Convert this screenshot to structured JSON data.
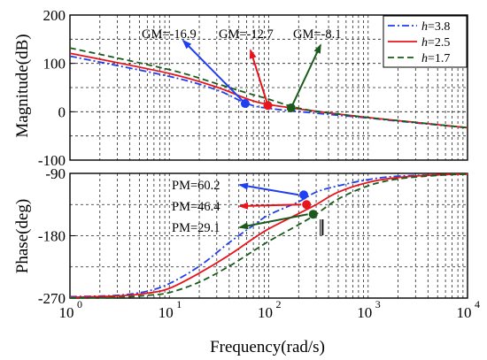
{
  "chart_data": [
    {
      "type": "line",
      "panel": "magnitude",
      "ylabel": "Magnitude(dB)",
      "xlabel": "",
      "xscale": "log",
      "xlim": [
        1,
        10000
      ],
      "ylim": [
        -100,
        200
      ],
      "yticks": [
        -100,
        0,
        100,
        200
      ],
      "grid": "dashed",
      "legend": {
        "placement": "top-right",
        "entries": [
          {
            "var": "h",
            "value": "=3.8"
          },
          {
            "var": "h",
            "value": "=2.5"
          },
          {
            "var": "h",
            "value": "=1.7"
          }
        ]
      },
      "series": [
        {
          "name": "h=3.8",
          "color": "#1f3ff0",
          "dash": "dashdot",
          "x": [
            1,
            10,
            30,
            60,
            100,
            300,
            1000,
            3000,
            10000
          ],
          "y": [
            115,
            73,
            45,
            17,
            7,
            -3,
            -13,
            -23,
            -33
          ]
        },
        {
          "name": "h=2.5",
          "color": "#e8141c",
          "dash": "solid",
          "x": [
            1,
            10,
            30,
            60,
            100,
            300,
            1000,
            3000,
            10000
          ],
          "y": [
            121,
            79,
            51,
            27,
            15,
            1,
            -12,
            -22,
            -33
          ]
        },
        {
          "name": "h=1.7",
          "color": "#1a5a1a",
          "dash": "dashed",
          "x": [
            1,
            10,
            30,
            60,
            100,
            170,
            300,
            1000,
            3000,
            10000
          ],
          "y": [
            132,
            87,
            58,
            39,
            26,
            11,
            1,
            -12,
            -22,
            -33
          ]
        }
      ],
      "markers": [
        {
          "x": 58,
          "y": 17,
          "color": "#1f3ff0"
        },
        {
          "x": 98,
          "y": 13,
          "color": "#e8141c"
        },
        {
          "x": 168,
          "y": 8,
          "color": "#1a5a1a"
        }
      ],
      "annotations": [
        {
          "text": "GM=-16.9",
          "color": "#1f3ff0"
        },
        {
          "text": "GM=-12.7",
          "color": "#e8141c"
        },
        {
          "text": "GM=-8.1",
          "color": "#1a5a1a"
        }
      ]
    },
    {
      "type": "line",
      "panel": "phase",
      "ylabel": "Phase(deg)",
      "xlabel": "Frequency(rad/s)",
      "xscale": "log",
      "xlim": [
        1,
        10000
      ],
      "xticks": [
        1,
        10,
        100,
        1000,
        10000
      ],
      "xtick_labels": [
        {
          "base": "10",
          "exp": "0"
        },
        {
          "base": "10",
          "exp": "1"
        },
        {
          "base": "10",
          "exp": "2"
        },
        {
          "base": "10",
          "exp": "3"
        },
        {
          "base": "10",
          "exp": "4"
        }
      ],
      "ylim": [
        -270,
        -90
      ],
      "yticks": [
        -270,
        -180,
        -90
      ],
      "grid": "dashed",
      "series": [
        {
          "name": "h=3.8",
          "color": "#1f3ff0",
          "dash": "dashdot",
          "x": [
            1,
            3,
            6,
            10,
            20,
            40,
            70,
            100,
            200,
            300,
            500,
            1000,
            2000,
            5000,
            10000
          ],
          "y": [
            -268,
            -266,
            -260,
            -249,
            -224,
            -190,
            -165,
            -150,
            -131,
            -117,
            -108,
            -99,
            -94,
            -92,
            -91
          ]
        },
        {
          "name": "h=2.5",
          "color": "#e8141c",
          "dash": "solid",
          "x": [
            1,
            3,
            6,
            10,
            20,
            40,
            70,
            100,
            200,
            300,
            500,
            1000,
            2000,
            5000,
            10000
          ],
          "y": [
            -269,
            -267,
            -263,
            -256,
            -234,
            -208,
            -184,
            -170,
            -148,
            -135,
            -117,
            -103,
            -96,
            -92,
            -91
          ]
        },
        {
          "name": "h=1.7",
          "color": "#1a5a1a",
          "dash": "dashed",
          "x": [
            1,
            3,
            6,
            10,
            20,
            40,
            70,
            100,
            200,
            300,
            500,
            1000,
            2000,
            5000,
            10000
          ],
          "y": [
            -270,
            -269,
            -266,
            -262,
            -247,
            -224,
            -202,
            -188,
            -164,
            -149,
            -127,
            -108,
            -98,
            -93,
            -91
          ]
        }
      ],
      "markers": [
        {
          "x": 225,
          "y": -121,
          "color": "#1f3ff0"
        },
        {
          "x": 240,
          "y": -135,
          "color": "#e8141c"
        },
        {
          "x": 280,
          "y": -149,
          "color": "#1a5a1a"
        }
      ],
      "annotations": [
        {
          "text": "PM=60.2",
          "color": "#1f3ff0"
        },
        {
          "text": "PM=46.4",
          "color": "#e8141c"
        },
        {
          "text": "PM=29.1",
          "color": "#1a5a1a"
        }
      ]
    }
  ]
}
